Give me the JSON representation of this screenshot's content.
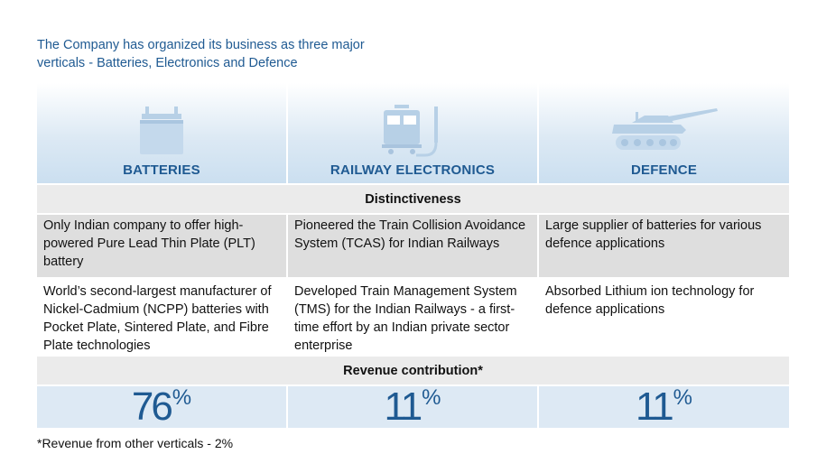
{
  "intro": "The Company has organized its business as three major verticals - Batteries, Electronics and Defence",
  "verticals": [
    {
      "label": "BATTERIES",
      "icon": "battery-icon",
      "pct": "76",
      "pct_sign": "%"
    },
    {
      "label": "RAILWAY ELECTRONICS",
      "icon": "train-icon",
      "pct": "11",
      "pct_sign": "%"
    },
    {
      "label": "DEFENCE",
      "icon": "tank-icon",
      "pct": "11",
      "pct_sign": "%"
    }
  ],
  "distinctiveness_heading": "Distinctiveness",
  "rows": [
    [
      "Only Indian company to offer high-powered Pure Lead Thin Plate (PLT) battery",
      "Pioneered the Train Collision Avoidance System (TCAS) for Indian Railways",
      "Large supplier of batteries for various defence applications"
    ],
    [
      "World’s second-largest manufacturer of Nickel-Cadmium (NCPP) batteries with Pocket Plate, Sintered Plate, and Fibre Plate technologies",
      "Developed Train Management System (TMS) for the Indian Railways - a first-time effort by an Indian private sector enterprise",
      "Absorbed Lithium ion technology for defence applications"
    ]
  ],
  "revenue_heading": "Revenue contribution*",
  "footnote": "*Revenue from other verticals - 2%",
  "colors": {
    "accent": "#1f5a92",
    "icon": "#b7d0e6",
    "row_gray": "#dedede",
    "pct_bg": "#dde9f4"
  }
}
